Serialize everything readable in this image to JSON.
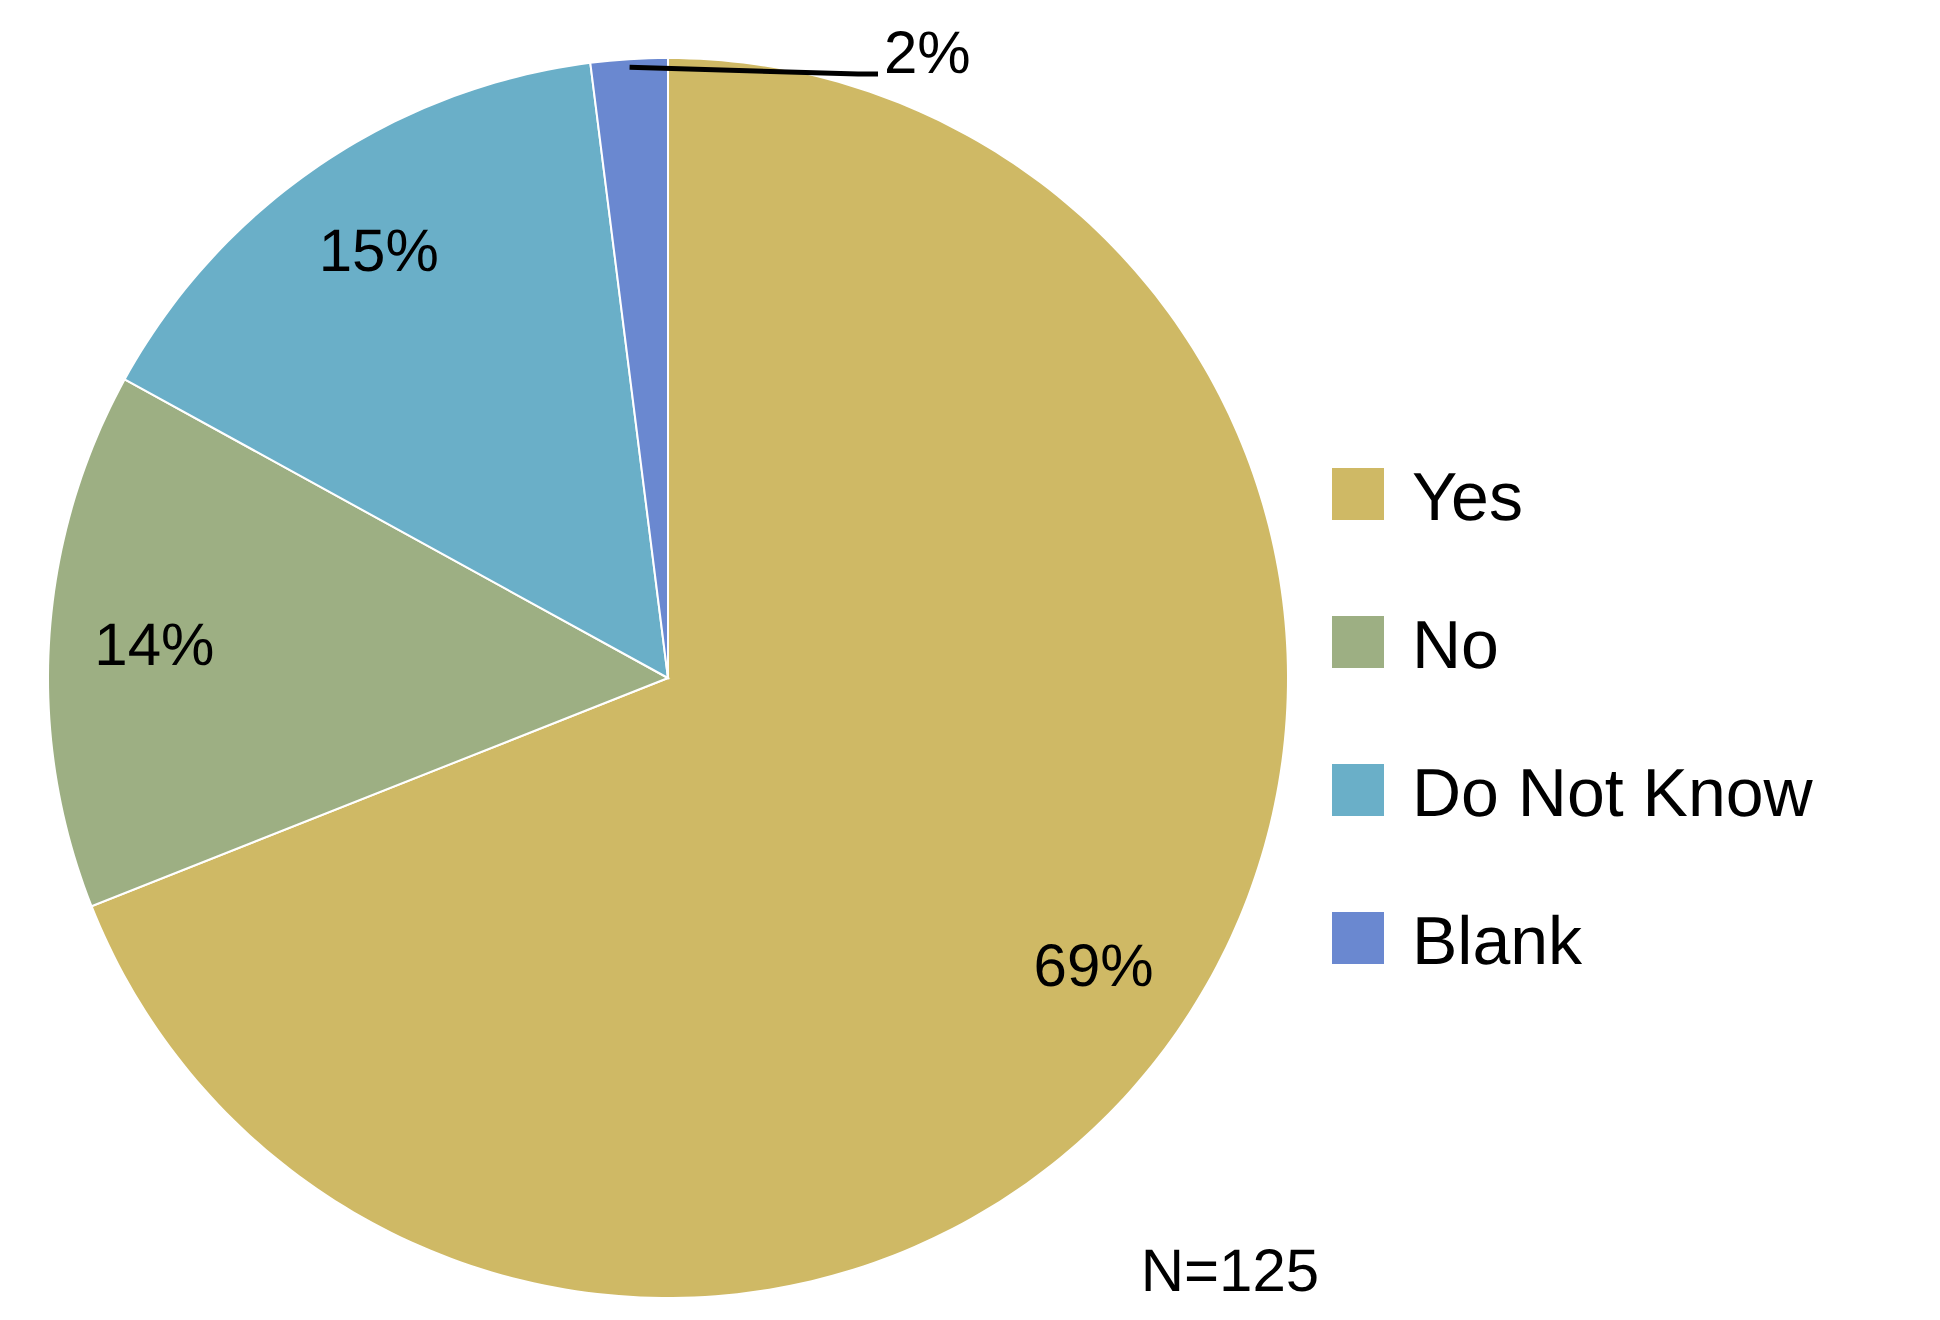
{
  "chart_data": {
    "type": "pie",
    "categories": [
      "Yes",
      "No",
      "Do Not Know",
      "Blank"
    ],
    "values": [
      69,
      14,
      15,
      2
    ],
    "colors": [
      "#cfb965",
      "#9daf83",
      "#6aafc8",
      "#6a88d0"
    ],
    "value_labels": [
      "69%",
      "14%",
      "15%",
      "2%"
    ],
    "legend": "right",
    "annotations": [
      "N=125"
    ]
  }
}
